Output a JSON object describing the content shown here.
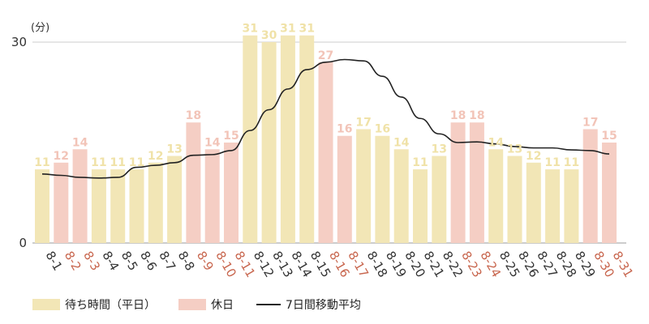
{
  "chart_data": {
    "type": "bar",
    "unit_label": "(分)",
    "y_ticks": [
      "0",
      "30"
    ],
    "ylim": [
      0,
      31.5
    ],
    "categories": [
      "8-1",
      "8-2",
      "8-3",
      "8-4",
      "8-5",
      "8-6",
      "8-7",
      "8-8",
      "8-9",
      "8-10",
      "8-11",
      "8-12",
      "8-13",
      "8-14",
      "8-15",
      "8-16",
      "8-17",
      "8-18",
      "8-19",
      "8-20",
      "8-21",
      "8-22",
      "8-23",
      "8-24",
      "8-25",
      "8-26",
      "8-27",
      "8-28",
      "8-29",
      "8-30",
      "8-31"
    ],
    "values": [
      11,
      12,
      14,
      11,
      11,
      11,
      12,
      13,
      18,
      14,
      15,
      31,
      30,
      31,
      31,
      27,
      16,
      17,
      16,
      14,
      11,
      13,
      18,
      18,
      14,
      13,
      12,
      11,
      11,
      17,
      15
    ],
    "is_holiday": [
      false,
      true,
      true,
      false,
      false,
      false,
      false,
      false,
      true,
      true,
      true,
      false,
      false,
      false,
      false,
      true,
      true,
      false,
      false,
      false,
      false,
      false,
      true,
      true,
      false,
      false,
      false,
      false,
      false,
      true,
      true
    ],
    "moving_average": [
      10.3,
      10.1,
      9.8,
      9.7,
      9.8,
      11.3,
      11.6,
      12.0,
      13.1,
      13.2,
      13.8,
      16.8,
      19.9,
      23.0,
      25.9,
      27.0,
      27.4,
      27.2,
      24.9,
      21.8,
      18.6,
      16.3,
      15.0,
      15.1,
      14.8,
      14.4,
      14.2,
      14.2,
      13.9,
      13.8,
      13.3
    ],
    "series": [
      {
        "name": "待ち時間（平日）",
        "color": "#f2e6b6"
      },
      {
        "name": "休日",
        "color": "#f5cec4"
      },
      {
        "name": "7日間移動平均",
        "color": "#222222"
      }
    ],
    "colors": {
      "weekday_label": "#f0e2a8",
      "holiday_label": "#f2c4b8",
      "weekday_tick": "#333333",
      "holiday_tick": "#c8664e",
      "grid": "#cccccc"
    }
  }
}
